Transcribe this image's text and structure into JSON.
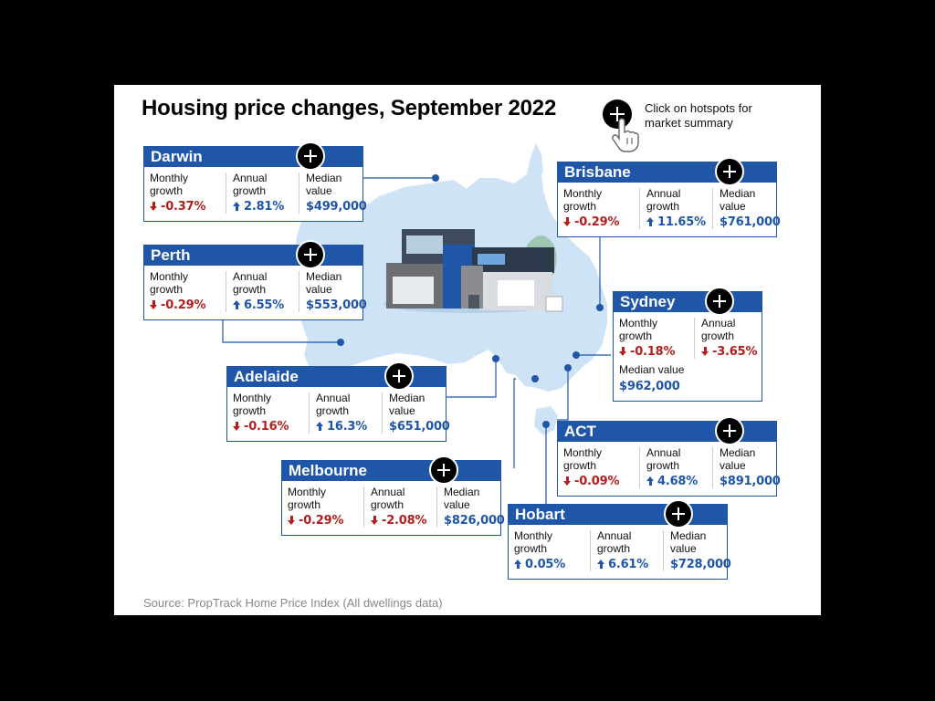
{
  "title": "Housing price changes, September 2022",
  "hint": {
    "text": "Click on hotspots for market summary",
    "icon": "plus-icon"
  },
  "source": "Source: PropTrack Home Price Index (All dwellings data)",
  "labels": {
    "monthly": "Monthly growth",
    "annual": "Annual growth",
    "median": "Median value"
  },
  "colors": {
    "brand_blue": "#1f56a8",
    "decline_red": "#b31e1e",
    "map_light_blue": "#cfe3f7"
  },
  "cities": {
    "darwin": {
      "name": "Darwin",
      "monthly": "-0.37%",
      "monthly_dir": "down",
      "annual": "2.81%",
      "annual_dir": "up",
      "median": "$499,000"
    },
    "perth": {
      "name": "Perth",
      "monthly": "-0.29%",
      "monthly_dir": "down",
      "annual": "6.55%",
      "annual_dir": "up",
      "median": "$553,000"
    },
    "adelaide": {
      "name": "Adelaide",
      "monthly": "-0.16%",
      "monthly_dir": "down",
      "annual": "16.3%",
      "annual_dir": "up",
      "median": "$651,000"
    },
    "melbourne": {
      "name": "Melbourne",
      "monthly": "-0.29%",
      "monthly_dir": "down",
      "annual": "-2.08%",
      "annual_dir": "down",
      "median": "$826,000"
    },
    "brisbane": {
      "name": "Brisbane",
      "monthly": "-0.29%",
      "monthly_dir": "down",
      "annual": "11.65%",
      "annual_dir": "up",
      "median": "$761,000"
    },
    "sydney": {
      "name": "Sydney",
      "monthly": "-0.18%",
      "monthly_dir": "down",
      "annual": "-3.65%",
      "annual_dir": "down",
      "median": "$962,000"
    },
    "act": {
      "name": "ACT",
      "monthly": "-0.09%",
      "monthly_dir": "down",
      "annual": "4.68%",
      "annual_dir": "up",
      "median": "$891,000"
    },
    "hobart": {
      "name": "Hobart",
      "monthly": "0.05%",
      "monthly_dir": "up",
      "annual": "6.61%",
      "annual_dir": "up",
      "median": "$728,000"
    }
  }
}
